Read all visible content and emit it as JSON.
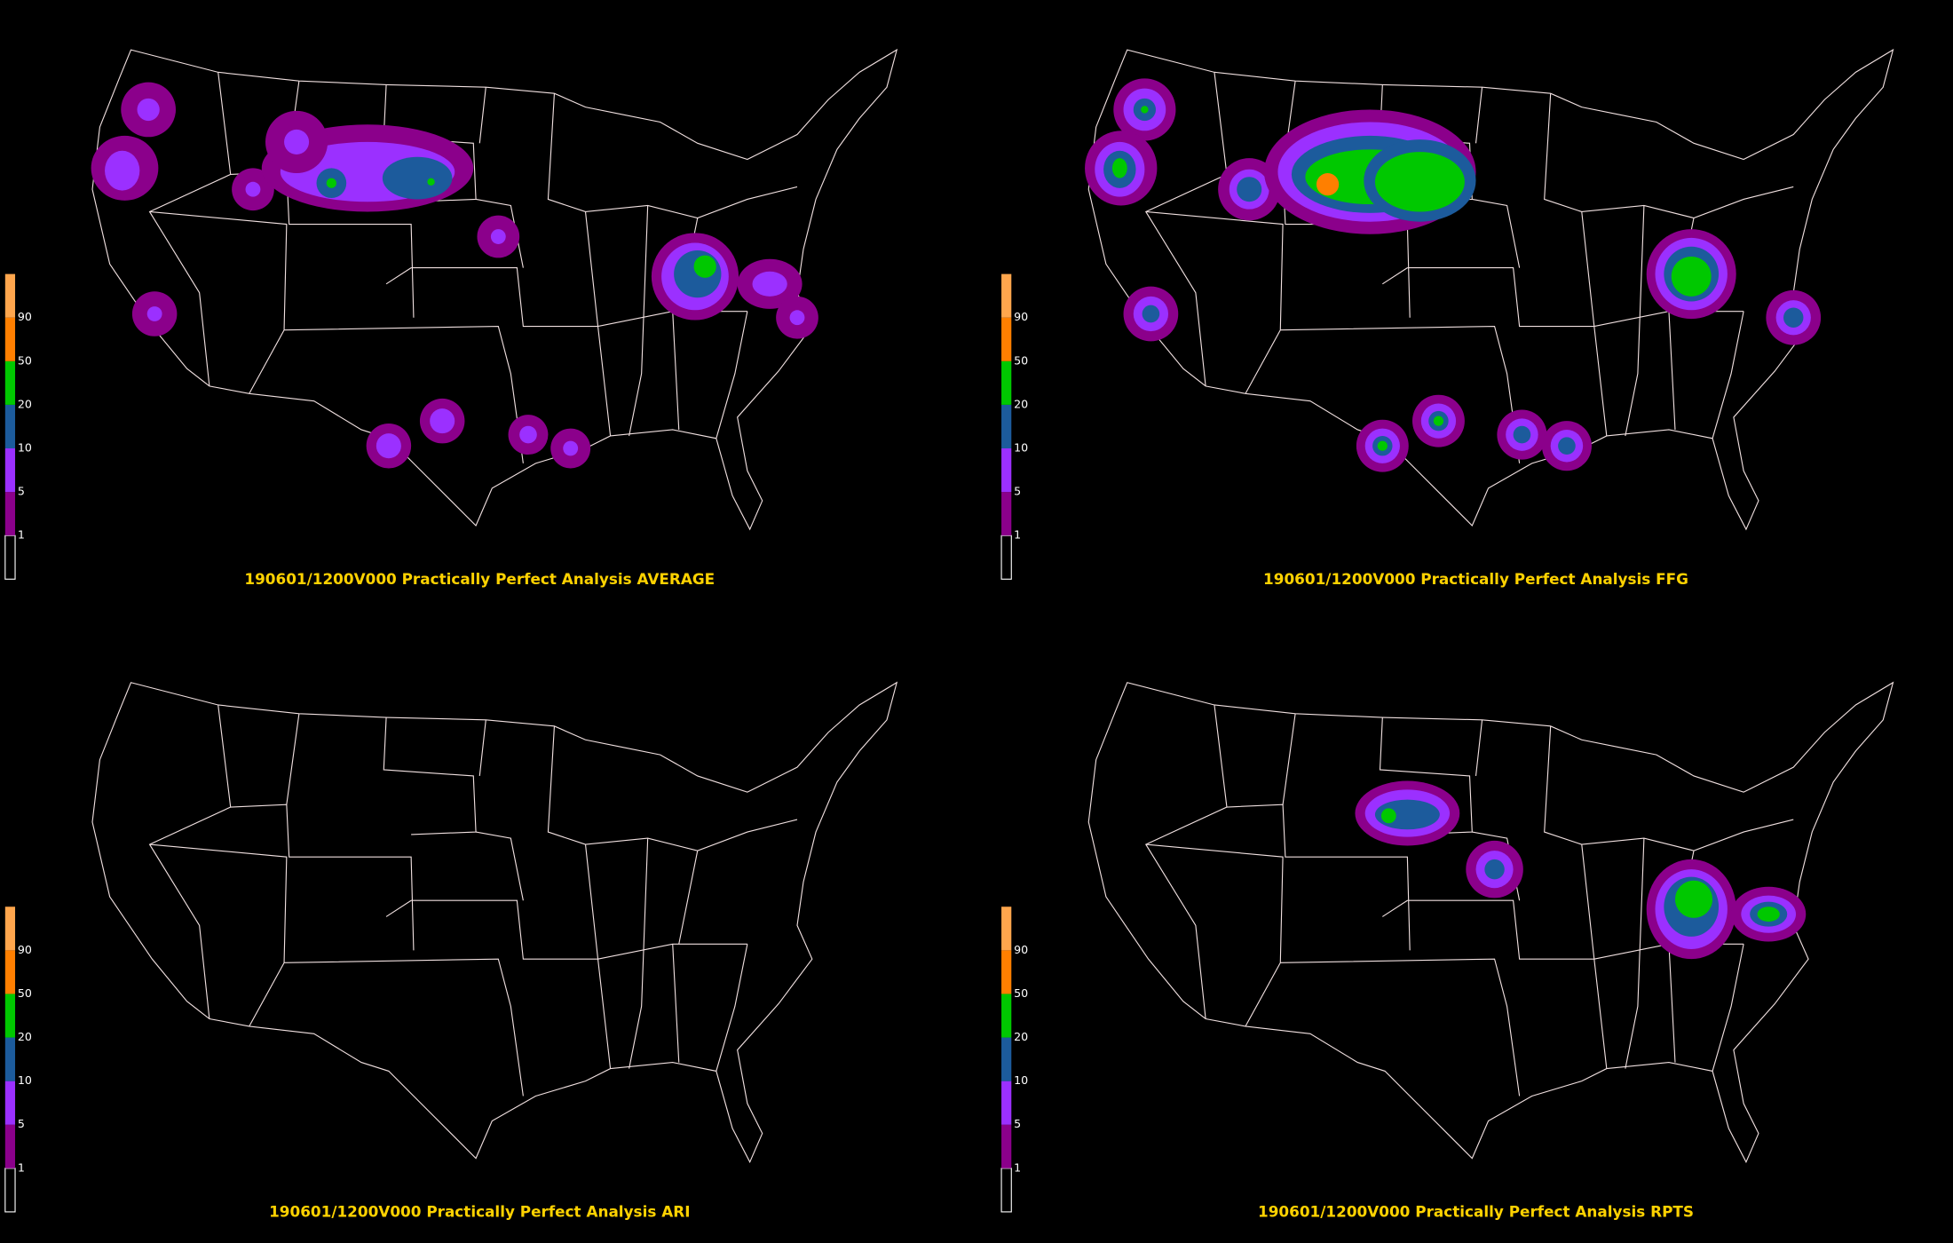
{
  "panels": [
    {
      "title": "190601/1200V000 Practically Perfect Analysis AVERAGE",
      "legend": {
        "labels": [
          "1",
          "5",
          "10",
          "20",
          "50",
          "90"
        ]
      }
    },
    {
      "title": "190601/1200V000 Practically Perfect Analysis FFG",
      "legend": {
        "labels": [
          "1",
          "5",
          "10",
          "20",
          "50",
          "90"
        ]
      }
    },
    {
      "title": "190601/1200V000 Practically Perfect Analysis ARI",
      "legend": {
        "labels": [
          "1",
          "5",
          "10",
          "20",
          "50",
          "90"
        ]
      }
    },
    {
      "title": "190601/1200V000 Practically Perfect Analysis RPTS",
      "legend": {
        "labels": [
          "1",
          "5",
          "10",
          "20",
          "50",
          "90"
        ]
      }
    }
  ],
  "legend_colors": [
    "#000000",
    "#8b008b",
    "#9b30ff",
    "#1c5b9c",
    "#00c800",
    "#ff7f00",
    "#ffa64d"
  ]
}
